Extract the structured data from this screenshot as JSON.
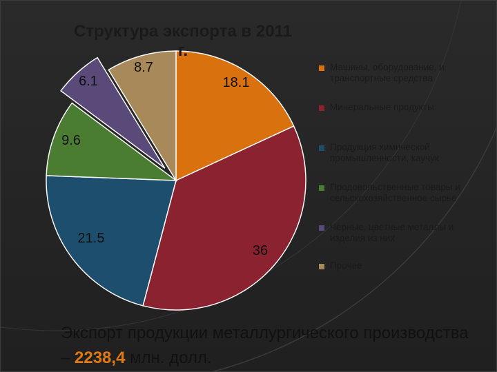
{
  "chart_data": {
    "type": "pie",
    "title": "Структура экспорта в 2011 г.",
    "slices": [
      {
        "label": "Машины, оборудование, и транспортные средства",
        "value": 18.1,
        "value_label": "18.1",
        "color": "#d9720e",
        "exploded": false
      },
      {
        "label": "Минеральные продукты",
        "value": 36,
        "value_label": "36",
        "color": "#8b2230",
        "exploded": false
      },
      {
        "label": "Продукция химической промышленности, каучук",
        "value": 21.5,
        "value_label": "21.5",
        "color": "#1d4e6e",
        "exploded": false
      },
      {
        "label": "Продовольственные товары и сельскохозяйственное сырье",
        "value": 9.6,
        "value_label": "9.6",
        "color": "#4a7d32",
        "exploded": false
      },
      {
        "label": "Черные, цветные металлы и изделия из них",
        "value": 6.1,
        "value_label": "6.1",
        "color": "#5a4a7a",
        "exploded": true
      },
      {
        "label": "Прочее",
        "value": 8.7,
        "value_label": "8.7",
        "color": "#a8895a",
        "exploded": false
      }
    ],
    "start": "12 o'clock",
    "direction": "clockwise",
    "legend_position": "right"
  },
  "caption": {
    "before": "Экспорт продукции металлургического производства – ",
    "highlight": "2238,4",
    "after": " млн. долл."
  },
  "colors": {
    "background": "#1f1f1f",
    "highlight": "#e07a10"
  }
}
